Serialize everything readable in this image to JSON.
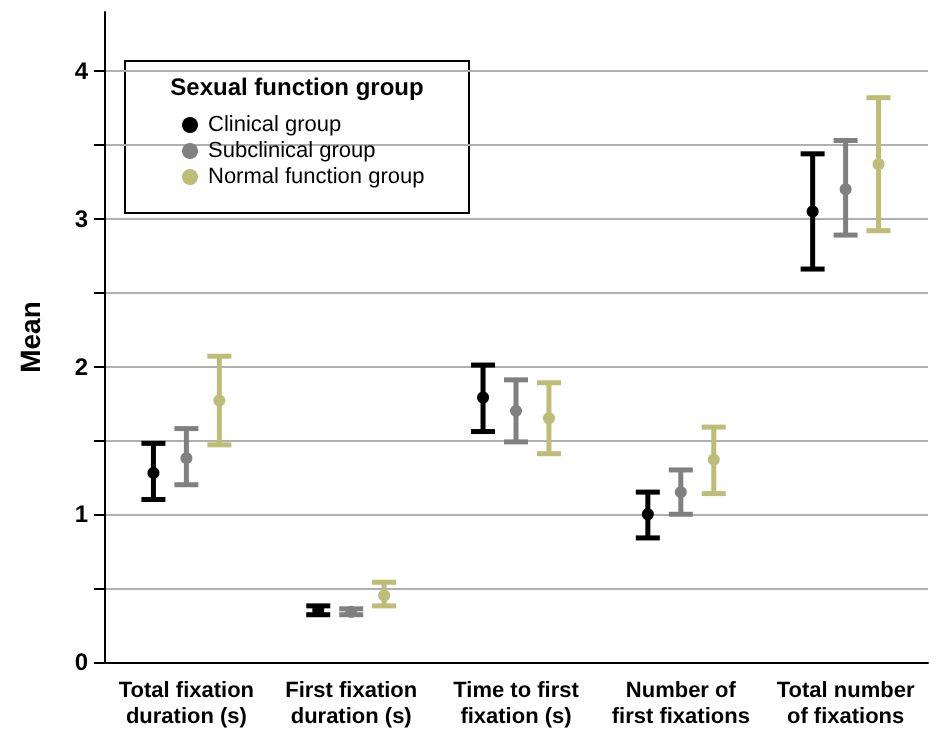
{
  "chart_data": {
    "type": "scatter",
    "ylabel": "Mean",
    "legend_title": "Sexual function group",
    "categories": [
      "Total fixation duration (s)",
      "First fixation duration (s)",
      "Time to first fixation (s)",
      "Number of first fixations",
      "Total number of fixations"
    ],
    "series": [
      {
        "name": "Clinical group",
        "color": "#000000",
        "values": [
          1.28,
          0.35,
          1.79,
          1.0,
          3.05
        ],
        "errors": [
          [
            1.1,
            1.48
          ],
          [
            0.32,
            0.38
          ],
          [
            1.56,
            2.01
          ],
          [
            0.84,
            1.15
          ],
          [
            2.66,
            3.44
          ]
        ]
      },
      {
        "name": "Subclinical group",
        "color": "#808080",
        "values": [
          1.38,
          0.34,
          1.7,
          1.15,
          3.2
        ],
        "errors": [
          [
            1.2,
            1.58
          ],
          [
            0.32,
            0.36
          ],
          [
            1.49,
            1.91
          ],
          [
            1.0,
            1.3
          ],
          [
            2.89,
            3.53
          ]
        ]
      },
      {
        "name": "Normal function group",
        "color": "#bdbd78",
        "values": [
          1.77,
          0.45,
          1.65,
          1.37,
          3.37
        ],
        "errors": [
          [
            1.47,
            2.07
          ],
          [
            0.38,
            0.54
          ],
          [
            1.41,
            1.89
          ],
          [
            1.14,
            1.59
          ],
          [
            2.92,
            3.82
          ]
        ]
      }
    ],
    "ylim": [
      0,
      4.4
    ],
    "yticks": [
      0,
      {
        "value": 0.5,
        "label": null
      },
      1,
      {
        "value": 1.5,
        "label": null
      },
      2,
      {
        "value": 2.5,
        "label": null
      },
      3,
      {
        "value": 3.5,
        "label": null
      },
      4
    ],
    "grid": "y",
    "legend": "top left",
    "marker": "circle"
  }
}
